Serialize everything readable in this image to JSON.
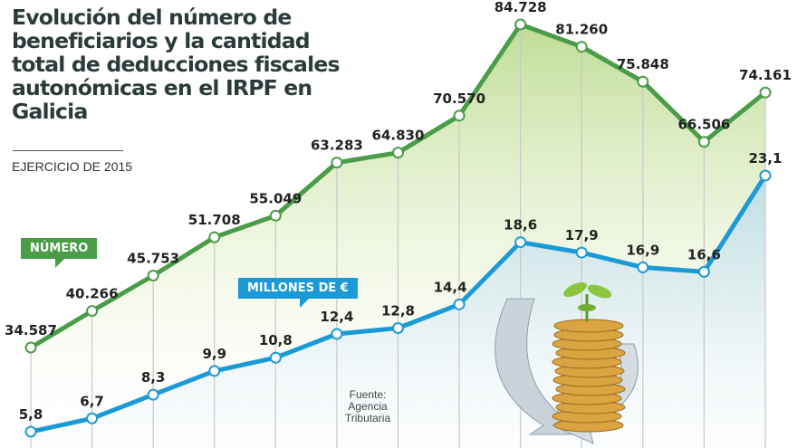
{
  "title": "Evolución del número de beneficiarios y la cantidad total de deducciones fiscales autonómicas en el IRPF en Galicia",
  "subtitle": "EJERCICIO DE 2015",
  "source": "Fuente: Agencia Tributaria",
  "colors": {
    "numero": "#4a9c48",
    "millones": "#1c9ad6",
    "title": "#2b3b3a"
  },
  "illustration": "coin-stack-with-sprout-and-circular-arrows",
  "chart_data": {
    "type": "line",
    "title": "Evolución del número de beneficiarios y la cantidad total de deducciones fiscales autonómicas en el IRPF en Galicia",
    "grid": "vertical lines at each point",
    "series": [
      {
        "name": "NÚMERO",
        "color": "#4a9c48",
        "values": [
          34587,
          40266,
          45753,
          51708,
          55049,
          63283,
          64830,
          70570,
          84728,
          81260,
          75848,
          66506,
          74161
        ],
        "labels": [
          "34.587",
          "40.266",
          "45.753",
          "51.708",
          "55.049",
          "63.283",
          "64.830",
          "70.570",
          "84.728",
          "81.260",
          "75.848",
          "66.506",
          "74.161"
        ]
      },
      {
        "name": "MILLONES DE €",
        "color": "#1c9ad6",
        "values": [
          5.8,
          6.7,
          8.3,
          9.9,
          10.8,
          12.4,
          12.8,
          14.4,
          18.6,
          17.9,
          16.9,
          16.6,
          23.1
        ],
        "labels": [
          "5,8",
          "6,7",
          "8,3",
          "9,9",
          "10,8",
          "12,4",
          "12,8",
          "14,4",
          "18,6",
          "17,9",
          "16,9",
          "16,6",
          "23,1"
        ]
      }
    ]
  }
}
